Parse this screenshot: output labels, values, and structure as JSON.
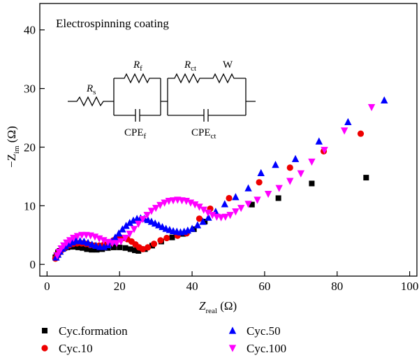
{
  "chart_data": {
    "type": "scatter",
    "annotation": "Electrospinning coating",
    "circuit": {
      "Rs": {
        "main": "R",
        "sub": "s"
      },
      "Rf": {
        "main": "R",
        "sub": "f"
      },
      "Rct": {
        "main": "R",
        "sub": "ct"
      },
      "W": "W",
      "CPEf": {
        "main": "CPE",
        "sub": "f"
      },
      "CPEct": {
        "main": "CPE",
        "sub": "ct"
      }
    },
    "xlabel": {
      "main": "Z",
      "sub": "real",
      "unit": " (Ω)"
    },
    "ylabel": {
      "main": "−Z",
      "sub": "im",
      "unit": " (Ω)"
    },
    "xlim": [
      -2,
      102
    ],
    "ylim": [
      -2,
      44.5
    ],
    "xticks": [
      0,
      20,
      40,
      60,
      80,
      100
    ],
    "yticks": [
      0,
      10,
      20,
      30,
      40
    ],
    "series": [
      {
        "name": "Cyc.formation",
        "color": "#000000",
        "marker": "square",
        "x": [
          2.3,
          2.6,
          3.0,
          3.5,
          4.1,
          4.8,
          5.6,
          6.5,
          7.5,
          8.6,
          9.8,
          11.0,
          12.3,
          13.7,
          15.2,
          16.8,
          18.4,
          20.0,
          21.6,
          23.0,
          24.2,
          25.2,
          27.0,
          29.0,
          31.5,
          34.5,
          37.5,
          40.5,
          43.5,
          56.5,
          63.8,
          73.0,
          88.0
        ],
        "values": [
          1.2,
          1.6,
          2.0,
          2.3,
          2.6,
          2.8,
          2.9,
          3.0,
          3.0,
          2.9,
          2.8,
          2.6,
          2.5,
          2.5,
          2.6,
          2.8,
          2.9,
          2.9,
          2.8,
          2.6,
          2.4,
          2.3,
          2.6,
          3.2,
          3.9,
          4.6,
          5.2,
          6.0,
          7.3,
          10.2,
          11.3,
          13.8,
          14.8
        ]
      },
      {
        "name": "Cyc.10",
        "color": "#ee0000",
        "marker": "circle",
        "x": [
          2.3,
          2.7,
          3.2,
          3.8,
          4.5,
          5.3,
          6.2,
          7.2,
          8.3,
          9.5,
          10.7,
          11.9,
          13.1,
          14.4,
          15.7,
          17.0,
          18.3,
          19.6,
          20.9,
          22.1,
          23.3,
          24.4,
          25.4,
          26.4,
          27.8,
          29.5,
          31.3,
          33.0,
          36.0,
          38.5,
          42.0,
          45.0,
          50.2,
          58.5,
          67.0,
          76.3,
          86.5
        ],
        "values": [
          1.0,
          1.4,
          1.9,
          2.3,
          2.7,
          3.0,
          3.3,
          3.5,
          3.6,
          3.6,
          3.5,
          3.3,
          3.2,
          3.2,
          3.4,
          3.7,
          4.1,
          4.4,
          4.5,
          4.3,
          3.9,
          3.4,
          2.9,
          2.6,
          2.9,
          3.5,
          4.1,
          4.5,
          4.9,
          5.3,
          7.8,
          9.5,
          11.3,
          14.0,
          16.5,
          19.3,
          22.3
        ]
      },
      {
        "name": "Cyc.50",
        "color": "#0000ff",
        "marker": "triangle-up",
        "x": [
          2.5,
          3.0,
          3.6,
          4.3,
          5.1,
          6.0,
          7.0,
          8.0,
          9.1,
          10.2,
          11.3,
          12.4,
          13.5,
          14.6,
          15.7,
          16.8,
          17.8,
          18.8,
          19.8,
          20.8,
          21.8,
          22.8,
          23.8,
          24.8,
          25.8,
          26.8,
          27.8,
          28.8,
          29.8,
          30.8,
          31.8,
          32.8,
          33.8,
          34.8,
          35.8,
          36.8,
          37.8,
          38.8,
          40.0,
          41.5,
          43.0,
          44.5,
          46.5,
          49.0,
          52.0,
          55.5,
          59.0,
          63.0,
          68.5,
          75.0,
          83.0,
          93.0
        ],
        "values": [
          1.2,
          1.7,
          2.2,
          2.7,
          3.1,
          3.5,
          3.8,
          4.0,
          4.0,
          3.9,
          3.7,
          3.4,
          3.2,
          3.0,
          3.0,
          3.3,
          3.9,
          4.6,
          5.3,
          6.0,
          6.6,
          7.1,
          7.5,
          7.8,
          7.9,
          7.8,
          7.6,
          7.3,
          7.0,
          6.7,
          6.4,
          6.1,
          5.9,
          5.7,
          5.6,
          5.5,
          5.6,
          5.8,
          6.1,
          6.7,
          7.3,
          8.0,
          9.0,
          10.3,
          11.5,
          13.0,
          15.6,
          17.0,
          18.0,
          21.0,
          24.3,
          28.0
        ]
      },
      {
        "name": "Cyc.100",
        "color": "#ff00ff",
        "marker": "triangle-down",
        "x": [
          2.8,
          3.3,
          3.9,
          4.6,
          5.4,
          6.3,
          7.3,
          8.4,
          9.6,
          10.8,
          12.0,
          13.2,
          14.4,
          15.6,
          16.8,
          18.0,
          19.2,
          20.4,
          21.6,
          22.8,
          24.0,
          25.2,
          26.4,
          27.6,
          28.8,
          30.0,
          31.2,
          32.4,
          33.6,
          34.8,
          36.0,
          37.2,
          38.4,
          39.6,
          40.8,
          42.0,
          43.2,
          44.4,
          45.6,
          46.8,
          48.0,
          49.2,
          50.5,
          52.0,
          53.5,
          55.5,
          58.0,
          61.0,
          64.0,
          67.0,
          70.0,
          73.0,
          76.5,
          82.0,
          89.5
        ],
        "values": [
          1.5,
          2.1,
          2.7,
          3.2,
          3.7,
          4.1,
          4.5,
          4.8,
          5.0,
          5.0,
          4.9,
          4.7,
          4.4,
          4.1,
          3.8,
          3.6,
          3.6,
          3.9,
          4.5,
          5.2,
          6.0,
          6.9,
          7.7,
          8.4,
          9.1,
          9.6,
          10.1,
          10.5,
          10.8,
          10.9,
          11.0,
          10.9,
          10.8,
          10.5,
          10.2,
          9.8,
          9.3,
          8.8,
          8.4,
          8.1,
          8.0,
          8.1,
          8.4,
          9.0,
          9.6,
          10.3,
          11.0,
          12.0,
          13.0,
          14.2,
          15.5,
          17.5,
          19.5,
          22.8,
          26.8
        ]
      }
    ]
  }
}
